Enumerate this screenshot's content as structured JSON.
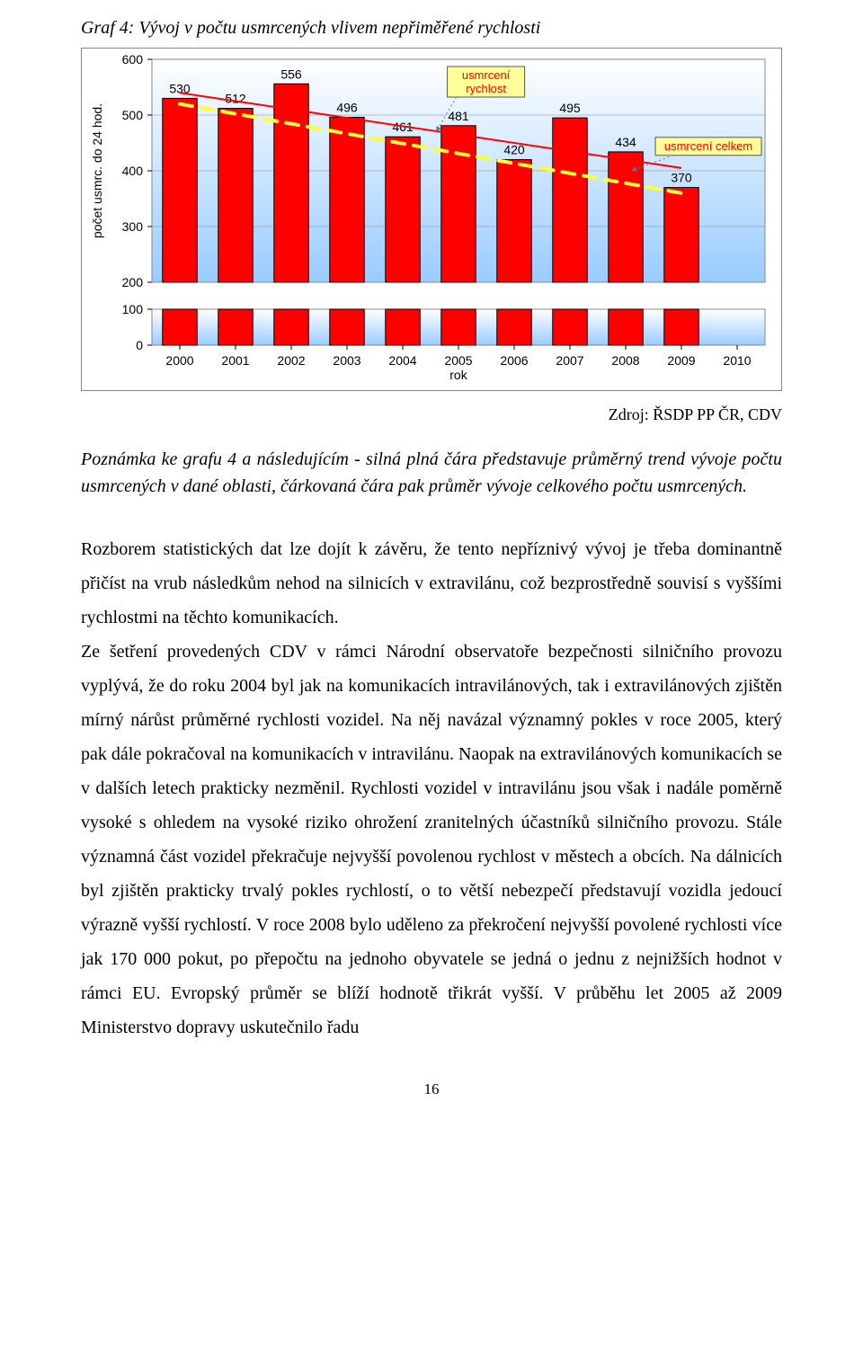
{
  "chart": {
    "title": "Graf 4: Vývoj v počtu usmrcených vlivem nepřiměřené rychlosti",
    "type": "bar",
    "categories": [
      "2000",
      "2001",
      "2002",
      "2003",
      "2004",
      "2005",
      "2006",
      "2007",
      "2008",
      "2009",
      "2010"
    ],
    "values": [
      530,
      512,
      556,
      496,
      461,
      481,
      420,
      495,
      434,
      370,
      null
    ],
    "bar_color": "#ff0000",
    "bar_border": "#000000",
    "ylim": [
      0,
      600
    ],
    "ytick_step": 100,
    "ylabel": "počet usmrc. do 24 hod.",
    "xlabel": "rok",
    "plot_bg_top": "#ffffff",
    "plot_bg_bottom": "#99ccff",
    "grid_color": "#000000",
    "axis_fontsize": 14,
    "label_fontsize": 14,
    "value_label_fontsize": 14,
    "value_label_color": "#000000",
    "trend_line_color": "#ff0000",
    "trend_line_width": 2,
    "trend_dash_color": "#ffff33",
    "trend_dash_width": 4,
    "legend_boxes": [
      {
        "label": "usmrcení\nrychlost",
        "bg": "#ffff99",
        "text_color": "#ff0000"
      },
      {
        "label": "usmrcení celkem",
        "bg": "#ffff99",
        "text_color": "#ff0000"
      }
    ]
  },
  "source": "Zdroj: ŘSDP PP ČR, CDV",
  "note": "Poznámka ke grafu 4 a následujícím - silná plná čára představuje průměrný trend vývoje počtu usmrcených v dané oblasti, čárkovaná čára pak průměr vývoje celkového počtu usmrcených.",
  "paragraphs": [
    "Rozborem statistických dat lze dojít k závěru, že tento nepříznivý vývoj je třeba dominantně přičíst na vrub následkům nehod na silnicích v extravilánu, což bezprostředně souvisí s vyššími rychlostmi na těchto komunikacích.",
    "Ze šetření provedených CDV v rámci Národní observatoře bezpečnosti silničního provozu vyplývá, že do roku 2004 byl jak na komunikacích intravilánových, tak i extravilánových zjištěn mírný nárůst průměrné rychlosti vozidel. Na něj navázal významný pokles v roce 2005, který pak dále pokračoval na komunikacích v intravilánu. Naopak na extravilánových komunikacích se v dalších letech prakticky nezměnil. Rychlosti vozidel v intravilánu jsou však i nadále poměrně vysoké s ohledem na vysoké riziko ohrožení zranitelných účastníků silničního provozu. Stále významná část vozidel překračuje nejvyšší povolenou rychlost v městech a obcích. Na dálnicích byl zjištěn prakticky trvalý pokles rychlostí, o to větší nebezpečí představují vozidla jedoucí výrazně vyšší rychlostí. V roce 2008 bylo uděleno za překročení nejvyšší povolené rychlosti více jak 170 000 pokut, po přepočtu na jednoho obyvatele se jedná o jednu z nejnižších hodnot v rámci EU. Evropský průměr se blíží hodnotě třikrát vyšší. V průběhu let 2005 až 2009 Ministerstvo dopravy uskutečnilo řadu"
  ],
  "page_number": "16"
}
